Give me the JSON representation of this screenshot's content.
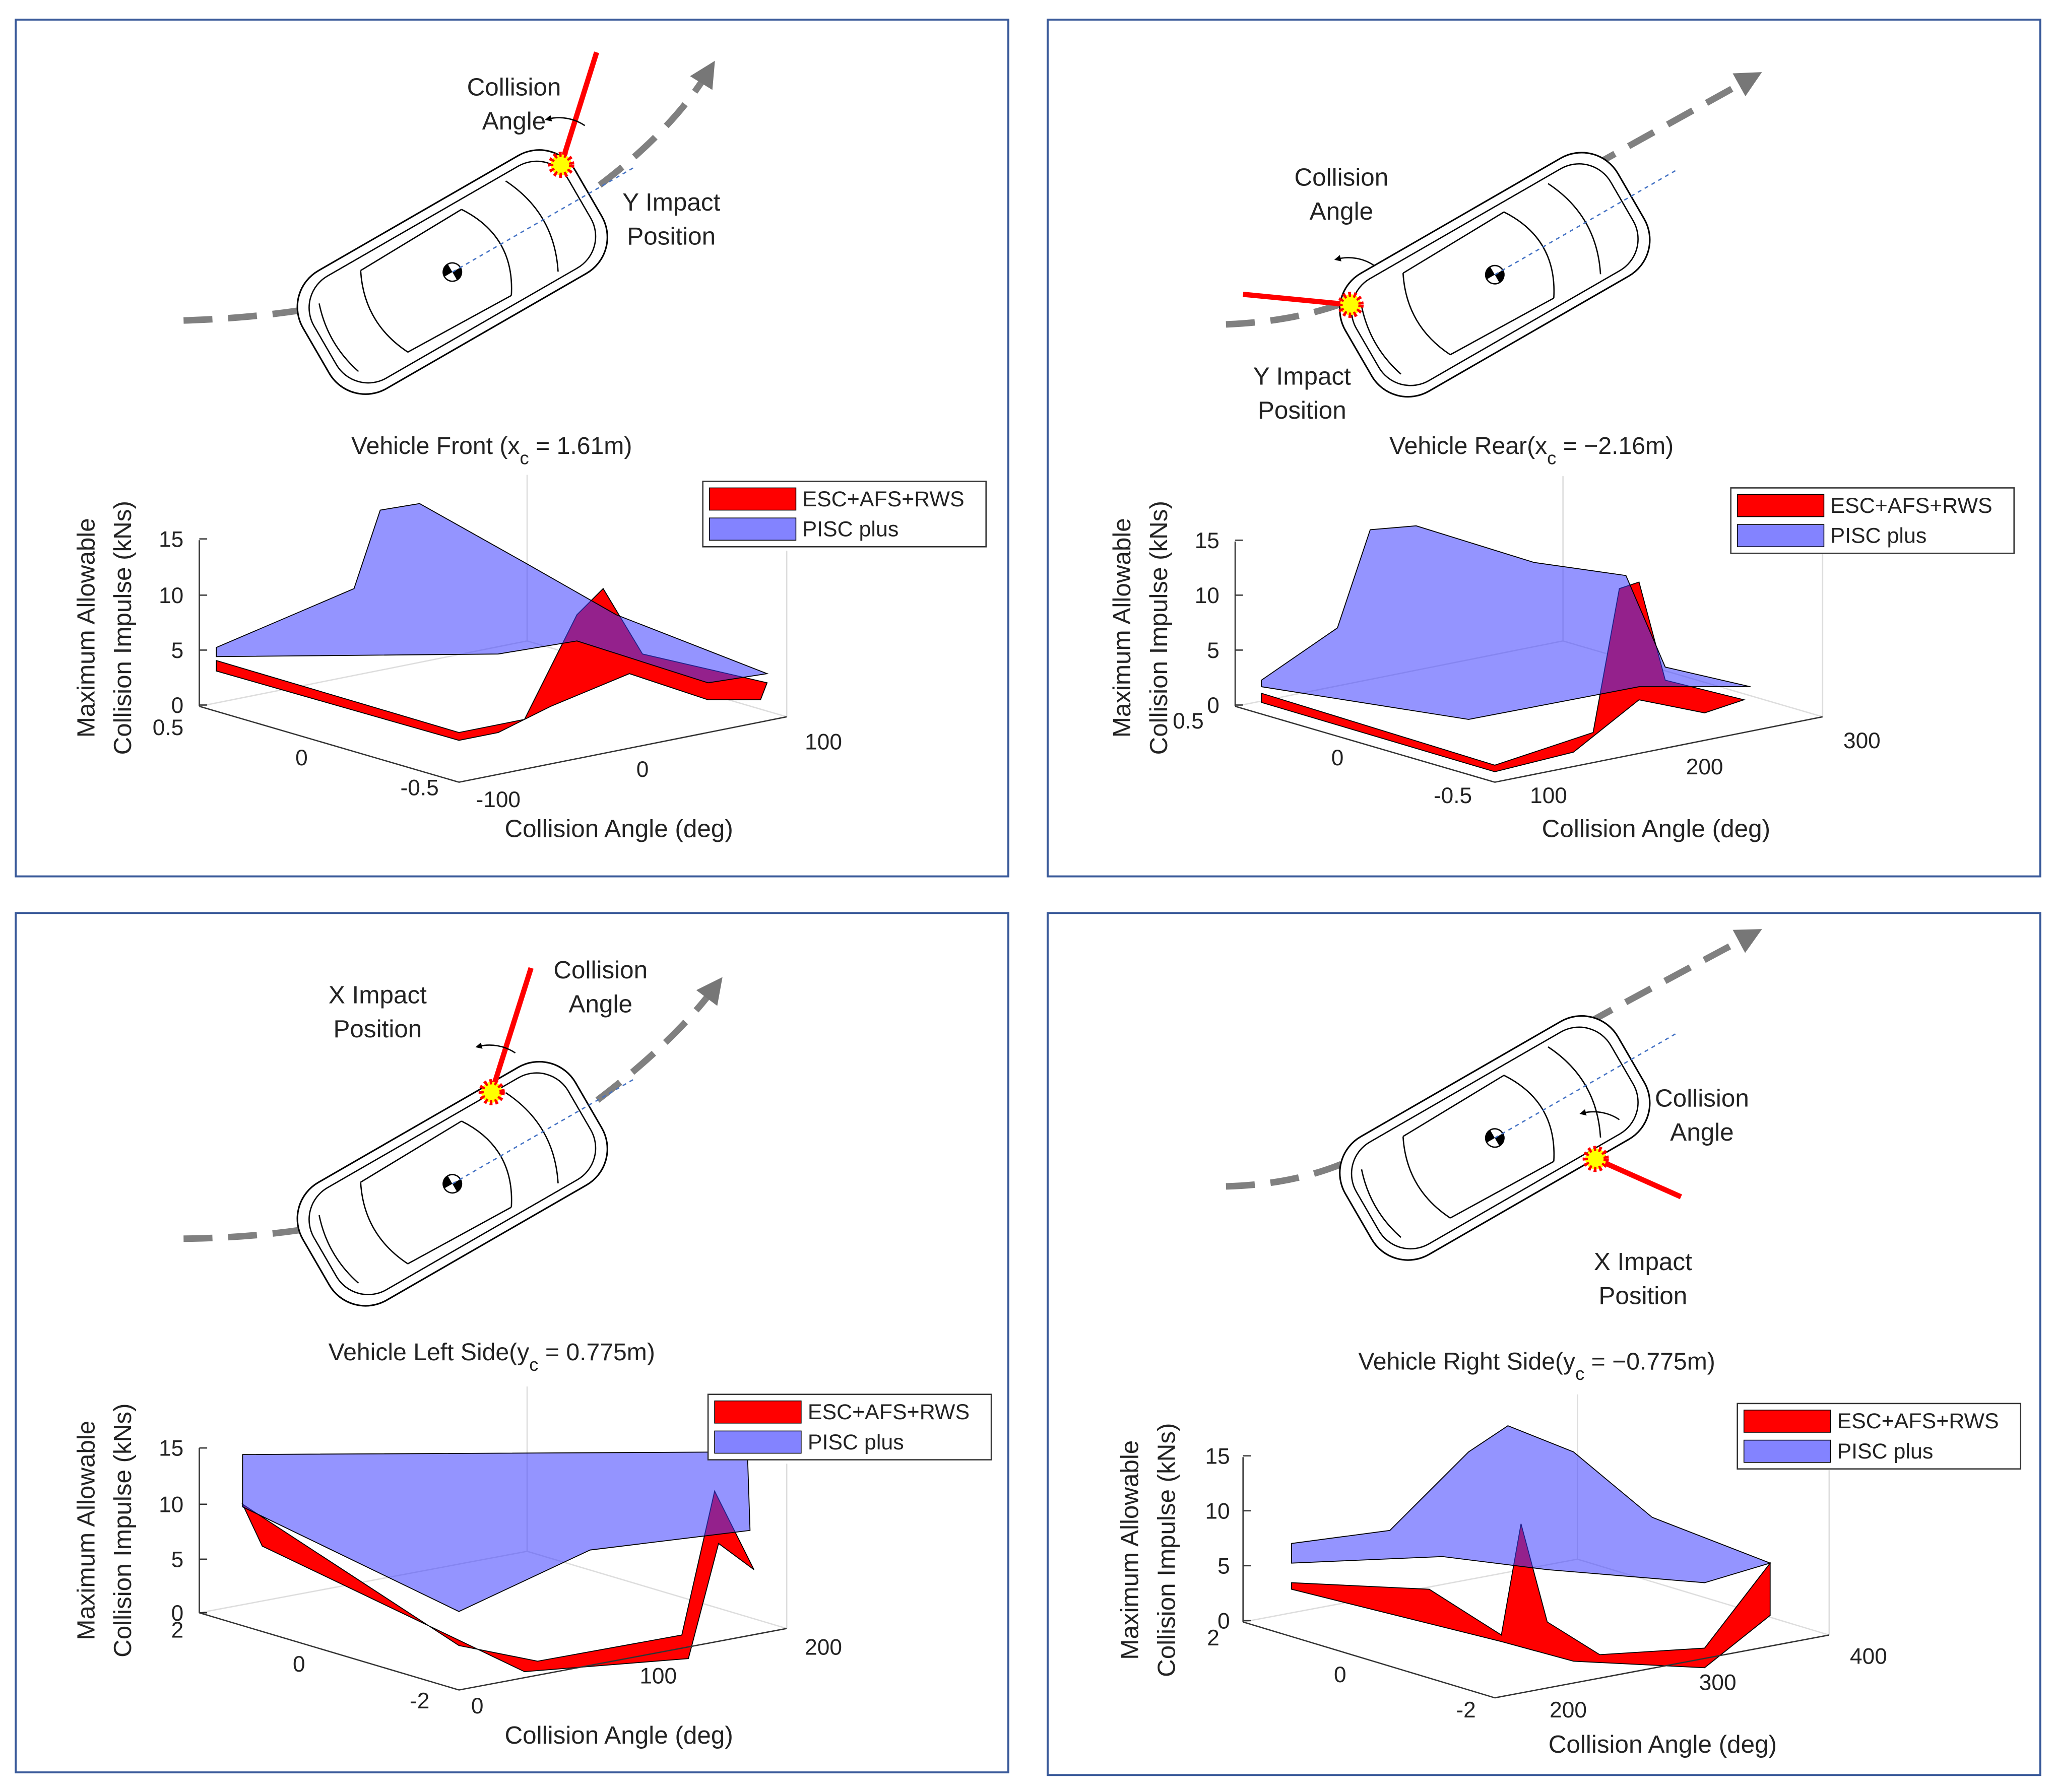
{
  "panels": [
    {
      "annotations": [
        "Collision",
        "Angle",
        "Y Impact",
        "Position"
      ],
      "title": {
        "prefix": "Vehicle Front (x",
        "sub": "c",
        "suffix": " = 1.61m)"
      },
      "legend": [
        "ESC+AFS+RWS",
        "PISC plus"
      ],
      "ylabel": [
        "Maximum Allowable",
        "Collision Impulse (kNs)"
      ],
      "xlabel": "Collision Angle (deg)",
      "zticks": [
        0,
        5,
        10,
        15
      ],
      "yticks": [
        0.5,
        0,
        -0.5
      ],
      "xticks": [
        -100,
        0,
        100
      ]
    },
    {
      "annotations": [
        "Collision",
        "Angle",
        "Y Impact",
        "Position"
      ],
      "title": {
        "prefix": "Vehicle Rear(x",
        "sub": "c",
        "suffix": " = −2.16m)"
      },
      "legend": [
        "ESC+AFS+RWS",
        "PISC plus"
      ],
      "ylabel": [
        "Maximum Allowable",
        "Collision Impulse (kNs)"
      ],
      "xlabel": "Collision Angle (deg)",
      "zticks": [
        0,
        5,
        10,
        15
      ],
      "yticks": [
        0.5,
        0,
        -0.5
      ],
      "xticks": [
        100,
        200,
        300
      ]
    },
    {
      "annotations": [
        "Collision",
        "Angle",
        "X Impact",
        "Position"
      ],
      "title": {
        "prefix": "Vehicle Left Side(y",
        "sub": "c",
        "suffix": " = 0.775m)"
      },
      "legend": [
        "ESC+AFS+RWS",
        "PISC plus"
      ],
      "ylabel": [
        "Maximum Allowable",
        "Collision Impulse (kNs)"
      ],
      "xlabel": "Collision Angle (deg)",
      "zticks": [
        0,
        5,
        10,
        15
      ],
      "yticks": [
        2,
        0,
        -2
      ],
      "xticks": [
        0,
        100,
        200
      ]
    },
    {
      "annotations": [
        "Collision",
        "Angle",
        "X Impact",
        "Position"
      ],
      "title": {
        "prefix": "Vehicle Right Side(y",
        "sub": "c",
        "suffix": " = −0.775m)"
      },
      "legend": [
        "ESC+AFS+RWS",
        "PISC plus"
      ],
      "ylabel": [
        "Maximum Allowable",
        "Collision Impulse (kNs)"
      ],
      "xlabel": "Collision Angle (deg)",
      "zticks": [
        0,
        5,
        10,
        15
      ],
      "yticks": [
        2,
        0,
        -2
      ],
      "xticks": [
        200,
        300,
        400
      ]
    }
  ]
}
